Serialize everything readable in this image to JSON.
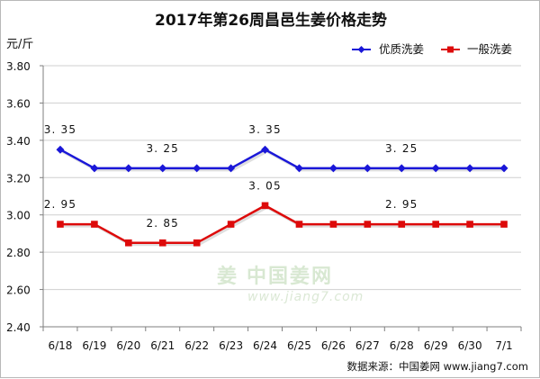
{
  "chart_data": {
    "type": "line",
    "title": "2017年第26周昌邑生姜价格走势",
    "ylabel": "元/斤",
    "categories": [
      "6/18",
      "6/19",
      "6/20",
      "6/21",
      "6/22",
      "6/23",
      "6/24",
      "6/25",
      "6/26",
      "6/27",
      "6/28",
      "6/29",
      "6/30",
      "7/1"
    ],
    "ylim": [
      2.4,
      3.8
    ],
    "yticks": [
      "2.40",
      "2.60",
      "2.80",
      "3.00",
      "3.20",
      "3.40",
      "3.60",
      "3.80"
    ],
    "grid": true,
    "legend_position": "top-right",
    "series": [
      {
        "name": "优质洗姜",
        "color": "#1a17d8",
        "marker": "diamond",
        "values": [
          3.35,
          3.25,
          3.25,
          3.25,
          3.25,
          3.25,
          3.35,
          3.25,
          3.25,
          3.25,
          3.25,
          3.25,
          3.25,
          3.25
        ]
      },
      {
        "name": "一般洗姜",
        "color": "#dd0a0a",
        "marker": "square",
        "values": [
          2.95,
          2.95,
          2.85,
          2.85,
          2.85,
          2.95,
          3.05,
          2.95,
          2.95,
          2.95,
          2.95,
          2.95,
          2.95,
          2.95
        ]
      }
    ],
    "annotations": [
      {
        "series": 0,
        "index": 0,
        "text": "3. 35"
      },
      {
        "series": 0,
        "index": 3,
        "text": "3. 25"
      },
      {
        "series": 0,
        "index": 6,
        "text": "3. 35"
      },
      {
        "series": 0,
        "index": 10,
        "text": "3. 25"
      },
      {
        "series": 1,
        "index": 0,
        "text": "2. 95"
      },
      {
        "series": 1,
        "index": 3,
        "text": "2. 85"
      },
      {
        "series": 1,
        "index": 6,
        "text": "3. 05"
      },
      {
        "series": 1,
        "index": 10,
        "text": "2. 95"
      }
    ],
    "source": "数据来源：中国姜网 www.jiang7.com",
    "watermark": {
      "main": "中国姜网",
      "url": "www.jiang7.com",
      "icon": "ginger-logo-icon"
    }
  }
}
